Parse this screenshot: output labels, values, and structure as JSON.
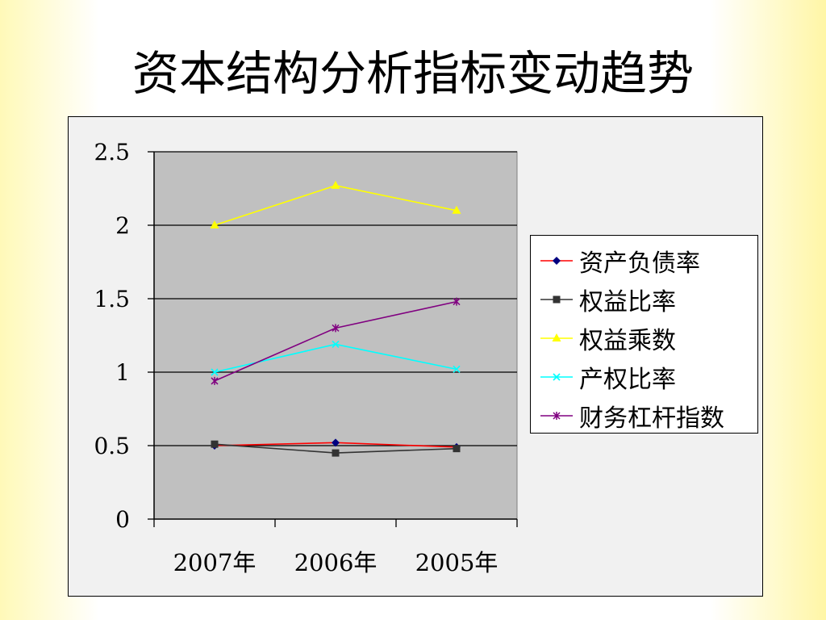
{
  "title": "资本结构分析指标变动趋势",
  "chart_data": {
    "type": "line",
    "title": "",
    "xlabel": "",
    "ylabel": "",
    "categories": [
      "2007年",
      "2006年",
      "2005年"
    ],
    "ylim": [
      0,
      2.5
    ],
    "yticks": [
      "0",
      "0.5",
      "1",
      "1.5",
      "2",
      "2.5"
    ],
    "grid": true,
    "legend_position": "right",
    "plot_background": "#c0c0c0",
    "series": [
      {
        "name": "资产负债率",
        "values": [
          0.5,
          0.52,
          0.49
        ],
        "color": "#ff0000",
        "marker_color": "#000080",
        "marker": "diamond"
      },
      {
        "name": "权益比率",
        "values": [
          0.51,
          0.45,
          0.48
        ],
        "color": "#333333",
        "marker_color": "#333333",
        "marker": "square"
      },
      {
        "name": "权益乘数",
        "values": [
          2.0,
          2.27,
          2.1
        ],
        "color": "#ffff00",
        "marker_color": "#ffff00",
        "marker": "triangle"
      },
      {
        "name": "产权比率",
        "values": [
          1.0,
          1.19,
          1.02
        ],
        "color": "#00ffff",
        "marker_color": "#00ffff",
        "marker": "x"
      },
      {
        "name": "财务杠杆指数",
        "values": [
          0.94,
          1.3,
          1.48
        ],
        "color": "#800080",
        "marker_color": "#800080",
        "marker": "asterisk"
      }
    ]
  }
}
